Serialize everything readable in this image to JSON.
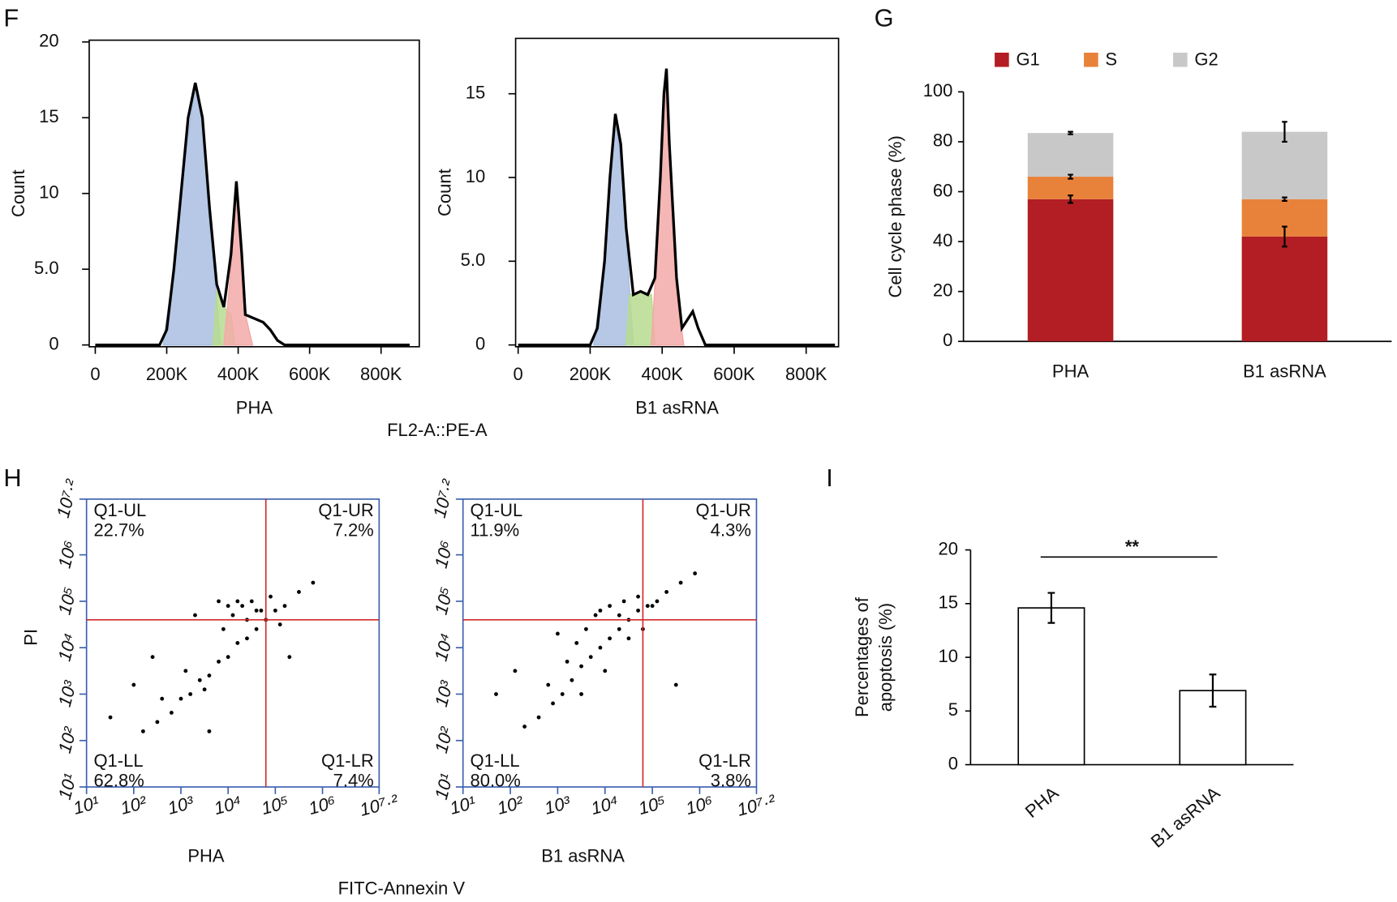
{
  "panel_labels": [
    "F",
    "G",
    "H",
    "I"
  ],
  "shared_axis_labels": [
    "FL2-A::PE-A",
    "FITC-Annexin V"
  ],
  "chart_data": [
    {
      "type": "line",
      "xlabel": "PHA",
      "ylabel": "Count",
      "xlim": [
        -17000,
        907000
      ],
      "ylim": [
        0,
        20
      ],
      "xticks": [
        0,
        {
          "value": 200000,
          "label": "200K"
        },
        {
          "value": 400000,
          "label": "400K"
        },
        {
          "value": 600000,
          "label": "600K"
        },
        {
          "value": 800000,
          "label": "800K"
        }
      ],
      "yticks": [
        0,
        {
          "value": 5,
          "label": "5.0"
        },
        10,
        15,
        20
      ],
      "grid": false,
      "series": [
        {
          "color": "#a9bee0",
          "fill": true,
          "x": [
            190000,
            220000,
            250000,
            280000,
            300000,
            320000,
            340000,
            350000
          ],
          "values": [
            0,
            5,
            12,
            17.3,
            15,
            8,
            3,
            0
          ]
        },
        {
          "color": "#b7dc8f",
          "fill": true,
          "x": [
            330000,
            340000,
            360000,
            380000,
            390000
          ],
          "values": [
            0,
            3.5,
            2.5,
            2,
            0
          ]
        },
        {
          "color": "#f3aaa8",
          "fill": true,
          "x": [
            360000,
            380000,
            395000,
            410000,
            420000,
            440000
          ],
          "values": [
            0,
            5,
            10.8,
            6,
            2,
            0
          ]
        },
        {
          "color": "#000000",
          "x": [
            0,
            180000,
            200000,
            220000,
            240000,
            260000,
            280000,
            300000,
            320000,
            340000,
            360000,
            380000,
            395000,
            410000,
            420000,
            440000,
            470000,
            490000,
            510000,
            530000,
            880000
          ],
          "values": [
            0,
            0,
            1,
            5,
            10,
            15,
            17.3,
            15,
            9,
            4,
            2.5,
            6,
            10.8,
            6,
            2,
            1.8,
            1.5,
            1,
            0.3,
            0,
            0
          ]
        }
      ]
    },
    {
      "type": "line",
      "xlabel": "B1 asRNA",
      "ylabel": "Count",
      "xlim": [
        -7000,
        890000
      ],
      "ylim": [
        0,
        18.2
      ],
      "xticks": [
        0,
        {
          "value": 200000,
          "label": "200K"
        },
        {
          "value": 400000,
          "label": "400K"
        },
        {
          "value": 600000,
          "label": "600K"
        },
        {
          "value": 800000,
          "label": "800K"
        }
      ],
      "yticks": [
        0,
        {
          "value": 5,
          "label": "5.0"
        },
        10,
        15
      ],
      "grid": false,
      "series": [
        {
          "color": "#a9bee0",
          "fill": true,
          "x": [
            210000,
            240000,
            270000,
            290000,
            310000,
            320000
          ],
          "values": [
            0,
            5,
            13.8,
            10,
            3,
            0
          ]
        },
        {
          "color": "#b7dc8f",
          "fill": true,
          "x": [
            300000,
            310000,
            340000,
            370000,
            380000
          ],
          "values": [
            0,
            3,
            3.2,
            3,
            0
          ]
        },
        {
          "color": "#f3aaa8",
          "fill": true,
          "x": [
            370000,
            390000,
            408000,
            420000,
            440000,
            460000
          ],
          "values": [
            0,
            7,
            16,
            12,
            3,
            0
          ]
        },
        {
          "color": "#000000",
          "x": [
            0,
            200000,
            220000,
            240000,
            255000,
            270000,
            285000,
            300000,
            320000,
            340000,
            360000,
            380000,
            395000,
            405000,
            412000,
            420000,
            440000,
            455000,
            470000,
            485000,
            500000,
            520000,
            880000
          ],
          "values": [
            0,
            0,
            1,
            5,
            10,
            13.8,
            12,
            7,
            3,
            3.2,
            3,
            4,
            10,
            15,
            16.5,
            12,
            4,
            1,
            1.5,
            2,
            1,
            0,
            0
          ]
        }
      ]
    },
    {
      "type": "stacked-bar",
      "ylabel": "Cell cycle phase (%)",
      "categories": [
        "PHA",
        "B1 asRNA"
      ],
      "ylim": [
        0,
        100
      ],
      "yticks": [
        0,
        20,
        40,
        60,
        80,
        100
      ],
      "grid": false,
      "series": [
        {
          "name": "G1",
          "color": "#b21e23",
          "values": [
            57,
            42
          ],
          "errors": [
            1.5,
            4
          ]
        },
        {
          "name": "S",
          "color": "#e8823a",
          "values": [
            9,
            15
          ],
          "errors": [
            0.8,
            0.7
          ]
        },
        {
          "name": "G2",
          "color": "#c8c8c8",
          "values": [
            17.5,
            27
          ],
          "errors": [
            0.5,
            4
          ]
        }
      ]
    },
    {
      "type": "scatter",
      "xlabel": "PHA",
      "ylabel": "PI",
      "log": true,
      "color": "#000000",
      "axis_color": "#3a5fb0",
      "gate_color": "#d42a2a",
      "xlim": [
        10,
        15848932
      ],
      "ylim": [
        10,
        15848932
      ],
      "xticks": [
        {
          "value": 10,
          "label": "10¹"
        },
        {
          "value": 100,
          "label": "10²"
        },
        {
          "value": 1000,
          "label": "10³"
        },
        {
          "value": 10000,
          "label": "10⁴"
        },
        {
          "value": 100000,
          "label": "10⁵"
        },
        {
          "value": 1000000,
          "label": "10⁶"
        },
        {
          "value": 15848932,
          "label": "10⁷·²"
        }
      ],
      "yticks": [
        {
          "value": 10,
          "label": "10¹"
        },
        {
          "value": 100,
          "label": "10²"
        },
        {
          "value": 1000,
          "label": "10³"
        },
        {
          "value": 10000,
          "label": "10⁴"
        },
        {
          "value": 100000,
          "label": "10⁵"
        },
        {
          "value": 1000000,
          "label": "10⁶"
        },
        {
          "value": 15848932,
          "label": "10⁷·²"
        }
      ],
      "gate": {
        "x": 63096,
        "y": 39811
      },
      "quadrants": {
        "names": [
          "Q1-UL",
          "Q1-UR",
          "Q1-LL",
          "Q1-LR"
        ],
        "values": [
          22.7,
          7.2,
          62.8,
          7.4
        ],
        "value_labels": [
          "22.7%",
          "7.2%",
          "62.8%",
          "7.4%"
        ]
      },
      "x": [
        158,
        316,
        631,
        1000,
        1585,
        2512,
        3981,
        6310,
        10000,
        15849,
        25119,
        39811,
        63096,
        100000,
        158489,
        316228,
        630957,
        398,
        1259,
        3162,
        7943,
        12589,
        19953,
        31623,
        50119,
        79433,
        10000,
        6310,
        25119,
        125893,
        32,
        251,
        1995,
        199526,
        100,
        3981,
        15849,
        39811
      ],
      "y": [
        158,
        251,
        398,
        794,
        1000,
        1995,
        2512,
        5012,
        6310,
        12589,
        15849,
        25119,
        39811,
        63096,
        79433,
        158489,
        251189,
        794,
        3162,
        1259,
        25119,
        50119,
        79433,
        100000,
        63096,
        125893,
        79433,
        100000,
        39811,
        31623,
        316,
        6310,
        50119,
        6310,
        1585,
        158,
        100000,
        63096
      ]
    },
    {
      "type": "scatter",
      "xlabel": "B1 asRNA",
      "log": true,
      "color": "#000000",
      "axis_color": "#3a5fb0",
      "gate_color": "#d42a2a",
      "xlim": [
        10,
        15848932
      ],
      "ylim": [
        10,
        15848932
      ],
      "xticks": [
        {
          "value": 10,
          "label": "10¹"
        },
        {
          "value": 100,
          "label": "10²"
        },
        {
          "value": 1000,
          "label": "10³"
        },
        {
          "value": 10000,
          "label": "10⁴"
        },
        {
          "value": 100000,
          "label": "10⁵"
        },
        {
          "value": 1000000,
          "label": "10⁶"
        },
        {
          "value": 15848932,
          "label": "10⁷·²"
        }
      ],
      "yticks": [
        {
          "value": 10,
          "label": "10¹"
        },
        {
          "value": 100,
          "label": "10²"
        },
        {
          "value": 1000,
          "label": "10³"
        },
        {
          "value": 10000,
          "label": "10⁴"
        },
        {
          "value": 100000,
          "label": "10⁵"
        },
        {
          "value": 1000000,
          "label": "10⁶"
        },
        {
          "value": 15848932,
          "label": "10⁷·²"
        }
      ],
      "gate": {
        "x": 63096,
        "y": 39811
      },
      "quadrants": {
        "names": [
          "Q1-UL",
          "Q1-UR",
          "Q1-LL",
          "Q1-LR"
        ],
        "values": [
          11.9,
          4.3,
          80.0,
          3.8
        ],
        "value_labels": [
          "11.9%",
          "4.3%",
          "80.0%",
          "3.8%"
        ]
      },
      "x": [
        200,
        398,
        794,
        1259,
        1995,
        3162,
        5012,
        7943,
        12589,
        19953,
        31623,
        50119,
        79433,
        125893,
        199526,
        398107,
        794328,
        631,
        1585,
        2512,
        3981,
        6310,
        12589,
        25119,
        50119,
        100000,
        3162,
        10000,
        31623,
        63096,
        50,
        126,
        1000,
        316228,
        20000,
        7943
      ],
      "y": [
        200,
        316,
        631,
        1000,
        1995,
        3981,
        6310,
        10000,
        15849,
        25119,
        39811,
        63096,
        79433,
        100000,
        158489,
        251189,
        398107,
        1585,
        5012,
        12589,
        25119,
        50119,
        79433,
        100000,
        125893,
        79433,
        1000,
        3162,
        15849,
        25119,
        1000,
        3162,
        20000,
        1585,
        50000,
        63096
      ]
    },
    {
      "type": "bar",
      "ylabel": [
        "Percentages of",
        "apoptosis (%)"
      ],
      "categories": [
        "PHA",
        "B1 asRNA"
      ],
      "values": [
        14.6,
        6.9
      ],
      "errors": [
        1.4,
        1.5
      ],
      "color": "#ffffff",
      "ylim": [
        0,
        20
      ],
      "yticks": [
        0,
        5,
        10,
        15,
        20
      ],
      "grid": false,
      "annotation": "**"
    }
  ]
}
